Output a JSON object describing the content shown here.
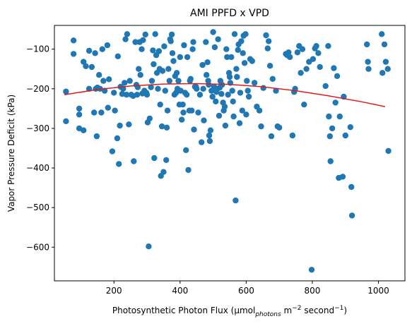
{
  "chart_data": {
    "type": "scatter",
    "title": "AMI PPFD x VPD",
    "xlabel": {
      "prefix": "Photosynthetic Photon Flux (µmol",
      "subscript": "photons",
      "middle": " m",
      "sup1": "−2",
      "after": " second",
      "sup2": "−1",
      "suffix": ")"
    },
    "ylabel": "Vapor Pressure Deficit (kPa)",
    "xlim": [
      20,
      1080
    ],
    "ylim": [
      -685,
      -40
    ],
    "xticks": [
      200,
      400,
      600,
      800,
      1000
    ],
    "yticks": [
      -600,
      -500,
      -400,
      -300,
      -200,
      -100
    ],
    "grid": false,
    "point_color": "#1f77b4",
    "fit_color": "#e31a1c",
    "fit_line": {
      "type": "quadratic",
      "x": [
        50,
        150,
        250,
        350,
        450,
        550,
        650,
        750,
        850,
        950,
        1020
      ],
      "y": [
        -215,
        -202,
        -193,
        -188,
        -187,
        -189,
        -195,
        -205,
        -218,
        -233,
        -245
      ]
    },
    "points": [
      [
        55,
        -207
      ],
      [
        55,
        -282
      ],
      [
        78,
        -78
      ],
      [
        78,
        -112
      ],
      [
        95,
        -250
      ],
      [
        95,
        -265
      ],
      [
        95,
        -300
      ],
      [
        108,
        -132
      ],
      [
        108,
        -305
      ],
      [
        115,
        -143
      ],
      [
        125,
        -200
      ],
      [
        125,
        -104
      ],
      [
        133,
        -145
      ],
      [
        140,
        -260
      ],
      [
        143,
        -110
      ],
      [
        145,
        -200
      ],
      [
        148,
        -320
      ],
      [
        150,
        -197
      ],
      [
        155,
        -165
      ],
      [
        158,
        -200
      ],
      [
        162,
        -260
      ],
      [
        165,
        -100
      ],
      [
        168,
        -180
      ],
      [
        172,
        -205
      ],
      [
        180,
        -90
      ],
      [
        182,
        -248
      ],
      [
        185,
        -176
      ],
      [
        195,
        -358
      ],
      [
        200,
        -210
      ],
      [
        203,
        -255
      ],
      [
        210,
        -325
      ],
      [
        212,
        -118
      ],
      [
        215,
        -390
      ],
      [
        218,
        -293
      ],
      [
        220,
        -195
      ],
      [
        225,
        -213
      ],
      [
        228,
        -200
      ],
      [
        232,
        -185
      ],
      [
        235,
        -75
      ],
      [
        238,
        -215
      ],
      [
        240,
        -62
      ],
      [
        245,
        -290
      ],
      [
        248,
        -180
      ],
      [
        252,
        -215
      ],
      [
        258,
        -218
      ],
      [
        260,
        -383
      ],
      [
        265,
        -82
      ],
      [
        268,
        -190
      ],
      [
        270,
        -215
      ],
      [
        272,
        -196
      ],
      [
        275,
        -150
      ],
      [
        278,
        -82
      ],
      [
        280,
        -165
      ],
      [
        284,
        -100
      ],
      [
        286,
        -212
      ],
      [
        288,
        -77
      ],
      [
        292,
        -205
      ],
      [
        295,
        -63
      ],
      [
        298,
        -210
      ],
      [
        300,
        -215
      ],
      [
        302,
        -285
      ],
      [
        305,
        -598
      ],
      [
        308,
        -275
      ],
      [
        312,
        -196
      ],
      [
        315,
        -180
      ],
      [
        318,
        -103
      ],
      [
        320,
        -138
      ],
      [
        322,
        -375
      ],
      [
        325,
        -62
      ],
      [
        328,
        -115
      ],
      [
        330,
        -160
      ],
      [
        333,
        -200
      ],
      [
        336,
        -105
      ],
      [
        338,
        -150
      ],
      [
        340,
        -240
      ],
      [
        342,
        -420
      ],
      [
        345,
        -295
      ],
      [
        347,
        -155
      ],
      [
        350,
        -410
      ],
      [
        352,
        -93
      ],
      [
        355,
        -205
      ],
      [
        358,
        -380
      ],
      [
        360,
        -298
      ],
      [
        362,
        -255
      ],
      [
        365,
        -150
      ],
      [
        368,
        -180
      ],
      [
        370,
        -75
      ],
      [
        372,
        -80
      ],
      [
        375,
        -63
      ],
      [
        377,
        -110
      ],
      [
        380,
        -130
      ],
      [
        383,
        -215
      ],
      [
        385,
        -168
      ],
      [
        388,
        -210
      ],
      [
        390,
        -160
      ],
      [
        392,
        -200
      ],
      [
        395,
        -180
      ],
      [
        398,
        -240
      ],
      [
        400,
        -120
      ],
      [
        402,
        -205
      ],
      [
        405,
        -278
      ],
      [
        408,
        -240
      ],
      [
        410,
        -260
      ],
      [
        412,
        -90
      ],
      [
        415,
        -210
      ],
      [
        418,
        -355
      ],
      [
        420,
        -215
      ],
      [
        422,
        -120
      ],
      [
        425,
        -405
      ],
      [
        428,
        -255
      ],
      [
        430,
        -180
      ],
      [
        432,
        -175
      ],
      [
        435,
        -255
      ],
      [
        438,
        -100
      ],
      [
        440,
        -82
      ],
      [
        442,
        -303
      ],
      [
        445,
        -195
      ],
      [
        448,
        -195
      ],
      [
        450,
        -200
      ],
      [
        455,
        -260
      ],
      [
        460,
        -215
      ],
      [
        465,
        -335
      ],
      [
        468,
        -140
      ],
      [
        470,
        -200
      ],
      [
        472,
        -280
      ],
      [
        478,
        -82
      ],
      [
        480,
        -165
      ],
      [
        483,
        -133
      ],
      [
        485,
        -180
      ],
      [
        487,
        -190
      ],
      [
        488,
        -318
      ],
      [
        490,
        -332
      ],
      [
        492,
        -305
      ],
      [
        495,
        -205
      ],
      [
        498,
        -220
      ],
      [
        500,
        -57
      ],
      [
        503,
        -195
      ],
      [
        505,
        -95
      ],
      [
        508,
        -232
      ],
      [
        510,
        -208
      ],
      [
        513,
        -200
      ],
      [
        515,
        -75
      ],
      [
        518,
        -268
      ],
      [
        520,
        -197
      ],
      [
        522,
        -180
      ],
      [
        525,
        -213
      ],
      [
        527,
        -190
      ],
      [
        530,
        -235
      ],
      [
        532,
        -255
      ],
      [
        535,
        -245
      ],
      [
        537,
        -293
      ],
      [
        540,
        -100
      ],
      [
        542,
        -120
      ],
      [
        545,
        -215
      ],
      [
        548,
        -160
      ],
      [
        550,
        -170
      ],
      [
        552,
        -185
      ],
      [
        555,
        -120
      ],
      [
        558,
        -205
      ],
      [
        560,
        -232
      ],
      [
        562,
        -270
      ],
      [
        565,
        -62
      ],
      [
        568,
        -482
      ],
      [
        570,
        -150
      ],
      [
        572,
        -170
      ],
      [
        575,
        -102
      ],
      [
        577,
        -88
      ],
      [
        580,
        -287
      ],
      [
        582,
        -210
      ],
      [
        585,
        -80
      ],
      [
        588,
        -255
      ],
      [
        590,
        -110
      ],
      [
        592,
        -66
      ],
      [
        595,
        -135
      ],
      [
        598,
        -62
      ],
      [
        600,
        -265
      ],
      [
        602,
        -180
      ],
      [
        605,
        -205
      ],
      [
        608,
        -220
      ],
      [
        612,
        -125
      ],
      [
        618,
        -130
      ],
      [
        625,
        -185
      ],
      [
        632,
        -245
      ],
      [
        640,
        -255
      ],
      [
        645,
        -295
      ],
      [
        652,
        -198
      ],
      [
        660,
        -65
      ],
      [
        665,
        -98
      ],
      [
        668,
        -80
      ],
      [
        672,
        -142
      ],
      [
        676,
        -320
      ],
      [
        680,
        -175
      ],
      [
        690,
        -205
      ],
      [
        695,
        -295
      ],
      [
        700,
        -298
      ],
      [
        720,
        -112
      ],
      [
        724,
        -115
      ],
      [
        728,
        -108
      ],
      [
        732,
        -120
      ],
      [
        740,
        -318
      ],
      [
        745,
        -208
      ],
      [
        748,
        -200
      ],
      [
        755,
        -108
      ],
      [
        760,
        -92
      ],
      [
        765,
        -160
      ],
      [
        770,
        -100
      ],
      [
        775,
        -240
      ],
      [
        782,
        -150
      ],
      [
        790,
        -132
      ],
      [
        798,
        -657
      ],
      [
        802,
        -125
      ],
      [
        808,
        -98
      ],
      [
        812,
        -92
      ],
      [
        818,
        -110
      ],
      [
        823,
        -145
      ],
      [
        840,
        -193
      ],
      [
        848,
        -92
      ],
      [
        850,
        -270
      ],
      [
        853,
        -320
      ],
      [
        855,
        -383
      ],
      [
        860,
        -300
      ],
      [
        865,
        -148
      ],
      [
        870,
        -235
      ],
      [
        875,
        -168
      ],
      [
        880,
        -425
      ],
      [
        883,
        -270
      ],
      [
        892,
        -422
      ],
      [
        895,
        -220
      ],
      [
        900,
        -318
      ],
      [
        915,
        -297
      ],
      [
        918,
        -448
      ],
      [
        920,
        -520
      ],
      [
        1010,
        -62
      ],
      [
        1012,
        -160
      ],
      [
        1018,
        -88
      ],
      [
        1022,
        -132
      ],
      [
        1028,
        -150
      ],
      [
        1030,
        -357
      ],
      [
        965,
        -88
      ],
      [
        968,
        -132
      ],
      [
        970,
        -150
      ]
    ]
  }
}
